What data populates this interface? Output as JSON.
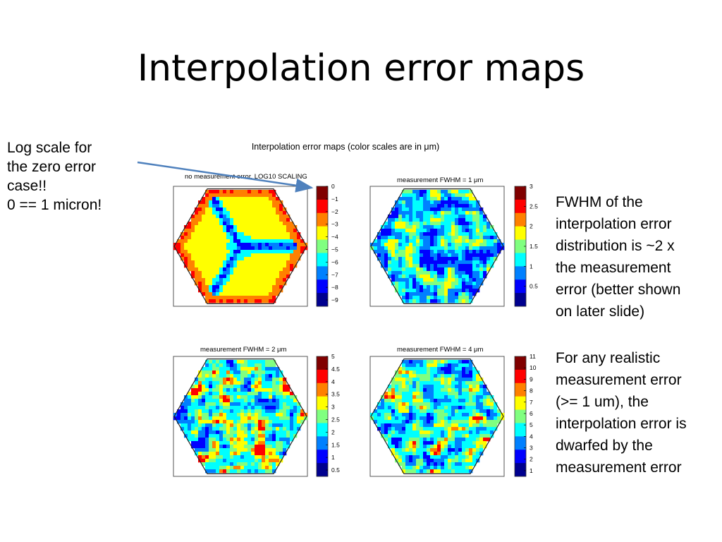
{
  "slide": {
    "title": "Interpolation error maps",
    "left_note": [
      "Log scale for",
      "the zero error",
      "case!!",
      "0 == 1 micron!"
    ],
    "right_note_1": [
      "FWHM of the",
      "interpolation error",
      "distribution is ~2 x",
      "the measurement",
      "error (better shown",
      "on later slide)"
    ],
    "right_note_2": [
      "For any realistic",
      "measurement error",
      "(>= 1 um), the",
      "interpolation error is",
      "dwarfed by the",
      "measurement error"
    ]
  },
  "colors": {
    "arrow": "#4f81bd",
    "colormap": [
      "#00008f",
      "#0000ff",
      "#0080ff",
      "#00ffff",
      "#80ff80",
      "#ffff00",
      "#ff8000",
      "#ff0000",
      "#800000"
    ]
  },
  "chart_data": [
    {
      "type": "heatmap",
      "title": "Interpolation error maps (color scales are in μm)",
      "panel_title": "no measurement error, LOG10 SCALING",
      "colorbar_ticks": [
        "0",
        "−1",
        "−2",
        "−3",
        "−4",
        "−5",
        "−6",
        "−7",
        "−8",
        "−9"
      ],
      "clim": [
        -9.5,
        0
      ],
      "pattern": "zero-error"
    },
    {
      "type": "heatmap",
      "panel_title": "measurement FWHM = 1 μm",
      "colorbar_ticks": [
        "3",
        "2.5",
        "2",
        "1.5",
        "1",
        "0.5"
      ],
      "clim": [
        0,
        3
      ],
      "pattern": "noise-low"
    },
    {
      "type": "heatmap",
      "panel_title": "measurement FWHM = 2 μm",
      "colorbar_ticks": [
        "5",
        "4.5",
        "4",
        "3.5",
        "3",
        "2.5",
        "2",
        "1.5",
        "1",
        "0.5"
      ],
      "clim": [
        0.25,
        5
      ],
      "pattern": "noise-mid"
    },
    {
      "type": "heatmap",
      "panel_title": "measurement FWHM = 4 μm",
      "colorbar_ticks": [
        "11",
        "10",
        "9",
        "8",
        "7",
        "6",
        "5",
        "4",
        "3",
        "2",
        "1"
      ],
      "clim": [
        0.5,
        11
      ],
      "pattern": "noise-mid"
    }
  ]
}
